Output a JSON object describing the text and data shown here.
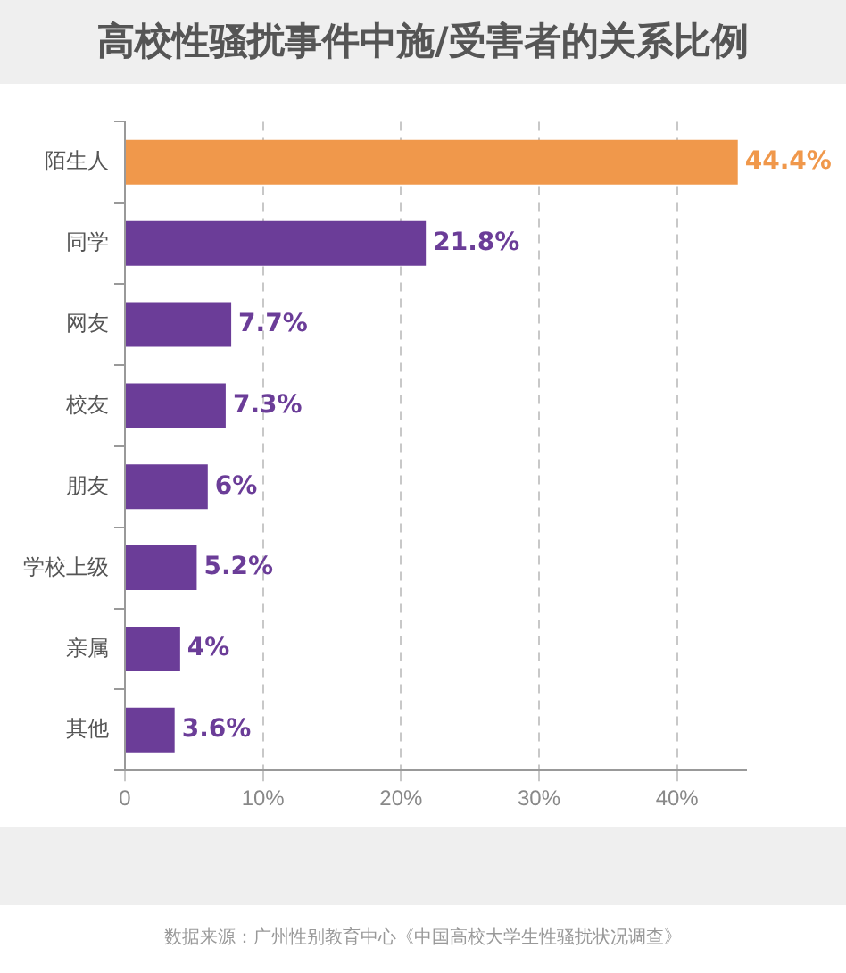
{
  "chart_data": {
    "type": "bar",
    "orientation": "horizontal",
    "title": "高校性骚扰事件中施/受害者的关系比例",
    "categories": [
      "陌生人",
      "同学",
      "网友",
      "校友",
      "朋友",
      "学校上级",
      "亲属",
      "其他"
    ],
    "values": [
      44.4,
      21.8,
      7.7,
      7.3,
      6,
      5.2,
      4,
      3.6
    ],
    "colors": [
      "#f0984b",
      "#6b3d98",
      "#6b3d98",
      "#6b3d98",
      "#6b3d98",
      "#6b3d98",
      "#6b3d98",
      "#6b3d98"
    ],
    "value_labels": [
      "44.4%",
      "21.8%",
      "7.7%",
      "7.3%",
      "6%",
      "5.2%",
      "4%",
      "3.6%"
    ],
    "xlim": [
      0,
      45
    ],
    "xticks": [
      {
        "value": 0,
        "label": "0"
      },
      {
        "value": 10,
        "label": "10%"
      },
      {
        "value": 20,
        "label": "20%"
      },
      {
        "value": 30,
        "label": "30%"
      },
      {
        "value": 40,
        "label": "40%"
      }
    ],
    "grid": "x",
    "legend": false,
    "annotations": [
      "数据来源：广州性别教育中心《中国高校大学生性骚扰状况调查》"
    ]
  }
}
